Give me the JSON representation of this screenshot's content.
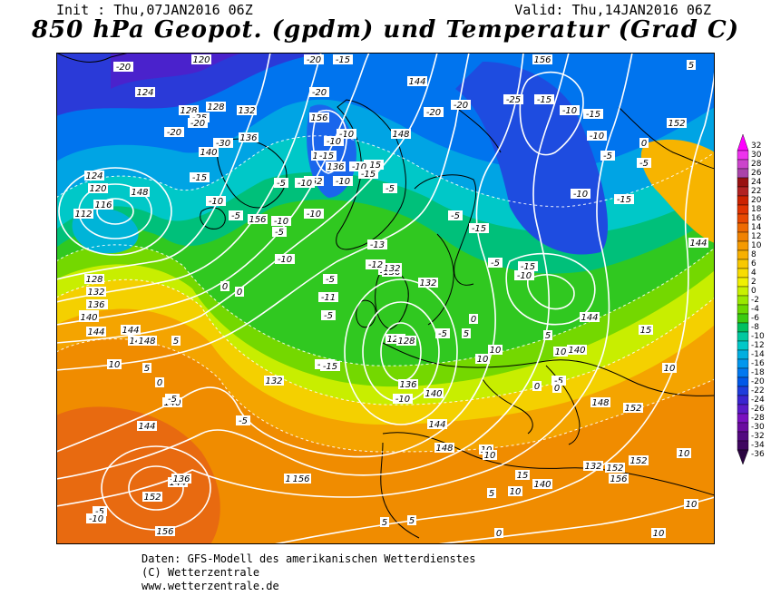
{
  "header": {
    "init": "Init : Thu,07JAN2016 06Z",
    "valid": "Valid: Thu,14JAN2016 06Z",
    "title": "850 hPa Geopot. (gpdm) und Temperatur (Grad C)"
  },
  "legend": {
    "labels": [
      "32",
      "30",
      "28",
      "26",
      "24",
      "22",
      "20",
      "18",
      "16",
      "14",
      "12",
      "10",
      "8",
      "6",
      "4",
      "2",
      "0",
      "-2",
      "-4",
      "-6",
      "-8",
      "-10",
      "-12",
      "-14",
      "-16",
      "-18",
      "-20",
      "-22",
      "-24",
      "-26",
      "-28",
      "-30",
      "-32",
      "-34",
      "-36"
    ],
    "colors": [
      "#ff00ff",
      "#ee33ee",
      "#cc44cc",
      "#aa44aa",
      "#991111",
      "#b22222",
      "#cc2200",
      "#e03300",
      "#e84800",
      "#ee6a00",
      "#f08200",
      "#f59a00",
      "#f7b000",
      "#f8c800",
      "#f8dc00",
      "#f0f000",
      "#c8f000",
      "#9ae800",
      "#6ad800",
      "#3acb10",
      "#00c060",
      "#00c8a0",
      "#00c8c8",
      "#00aee0",
      "#0096ee",
      "#0078f0",
      "#0058e8",
      "#1e3cdc",
      "#3a24d0",
      "#5a1ac8",
      "#7a10c0",
      "#6a0aa0",
      "#520880",
      "#3e0660",
      "#2a0440"
    ]
  },
  "map": {
    "geopotential_labels": [
      "120",
      "124",
      "128",
      "128",
      "132",
      "136",
      "140",
      "148",
      "144",
      "148",
      "156",
      "160",
      "152",
      "136",
      "132",
      "128",
      "136",
      "132",
      "140",
      "144",
      "148",
      "152",
      "156",
      "140",
      "132",
      "128",
      "136",
      "140",
      "144",
      "148",
      "152",
      "156",
      "144",
      "148",
      "140",
      "136",
      "148",
      "152",
      "112",
      "116",
      "120",
      "124",
      "128",
      "132",
      "136",
      "140",
      "144",
      "148",
      "152",
      "156",
      "144",
      "136",
      "132",
      "140",
      "144",
      "148",
      "156",
      "152",
      "156",
      "132",
      "144"
    ],
    "temperature_labels": [
      "-20",
      "-25",
      "-20",
      "-20",
      "-30",
      "-15",
      "-10",
      "-10",
      "-5",
      "-10",
      "-15",
      "-10",
      "-20",
      "-15",
      "-20",
      "-15",
      "-5",
      "-10",
      "-10",
      "-15",
      "-10",
      "-5",
      "-15",
      "-5",
      "-10",
      "-15",
      "-20",
      "-25",
      "-20",
      "-15",
      "-10",
      "-15",
      "-10",
      "-5",
      "0",
      "5",
      "-5",
      "-10",
      "-15",
      "-10",
      "-5",
      "-10",
      "-5",
      "0",
      "-5",
      "0",
      "5",
      "10",
      "5",
      "0",
      "-5",
      "-5",
      "-10",
      "-5",
      "0",
      "5",
      "10",
      "10",
      "5",
      "10",
      "15",
      "10",
      "10",
      "10",
      "10",
      "10",
      "10",
      "0",
      "5",
      "5",
      "-5",
      "-10",
      "-5",
      "0",
      "0",
      "5",
      "10",
      "15",
      "-13",
      "-12",
      "-11",
      "-5",
      "-10",
      "-15"
    ]
  },
  "footer": {
    "line1": "Daten: GFS-Modell des amerikanischen Wetterdienstes",
    "line2": "(C) Wetterzentrale",
    "line3": "www.wetterzentrale.de"
  },
  "colors": {
    "frame": "#000000",
    "contour": "#ffffff",
    "coast": "#000000"
  }
}
